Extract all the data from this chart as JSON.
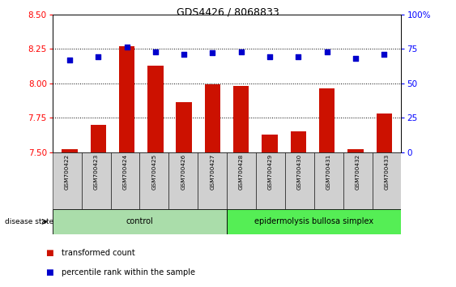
{
  "title": "GDS4426 / 8068833",
  "samples": [
    "GSM700422",
    "GSM700423",
    "GSM700424",
    "GSM700425",
    "GSM700426",
    "GSM700427",
    "GSM700428",
    "GSM700429",
    "GSM700430",
    "GSM700431",
    "GSM700432",
    "GSM700433"
  ],
  "bar_values": [
    7.52,
    7.7,
    8.27,
    8.13,
    7.86,
    7.99,
    7.98,
    7.63,
    7.65,
    7.96,
    7.52,
    7.78
  ],
  "dot_values_percentile": [
    67,
    69,
    76,
    73,
    71,
    72,
    73,
    69,
    69,
    73,
    68,
    71
  ],
  "bar_bottom": 7.5,
  "ylim_left": [
    7.5,
    8.5
  ],
  "ylim_right": [
    0,
    100
  ],
  "yticks_left": [
    7.5,
    7.75,
    8.0,
    8.25,
    8.5
  ],
  "yticks_right": [
    0,
    25,
    50,
    75,
    100
  ],
  "ytick_labels_right": [
    "0",
    "25",
    "50",
    "75",
    "100%"
  ],
  "grid_values": [
    7.75,
    8.0,
    8.25
  ],
  "n_control": 6,
  "n_disease": 6,
  "control_label": "control",
  "disease_label": "epidermolysis bullosa simplex",
  "bar_color": "#CC1100",
  "dot_color": "#0000CC",
  "control_bg": "#AADDAA",
  "disease_bg": "#55EE55",
  "tick_bg": "#D0D0D0",
  "legend_bar": "transformed count",
  "legend_dot": "percentile rank within the sample",
  "disease_state_label": "disease state"
}
